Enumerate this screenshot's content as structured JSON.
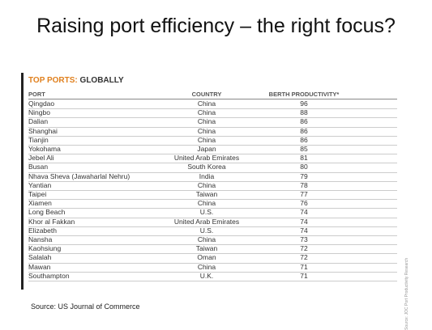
{
  "slide": {
    "title": "Raising port efficiency – the right focus?",
    "source": "Source: US Journal of Commerce"
  },
  "table": {
    "heading_highlight": "TOP PORTS:",
    "heading_rest": "GLOBALLY",
    "side_note": "Source: JOC Port Productivity Research",
    "columns": [
      "PORT",
      "COUNTRY",
      "BERTH PRODUCTIVITY*"
    ],
    "rows": [
      [
        "Qingdao",
        "China",
        96
      ],
      [
        "Ningbo",
        "China",
        88
      ],
      [
        "Dalian",
        "China",
        86
      ],
      [
        "Shanghai",
        "China",
        86
      ],
      [
        "Tianjin",
        "China",
        86
      ],
      [
        "Yokohama",
        "Japan",
        85
      ],
      [
        "Jebel Ali",
        "United Arab Emirates",
        81
      ],
      [
        "Busan",
        "South Korea",
        80
      ],
      [
        "Nhava Sheva (Jawaharlal Nehru)",
        "India",
        79
      ],
      [
        "Yantian",
        "China",
        78
      ],
      [
        "Taipei",
        "Taiwan",
        77
      ],
      [
        "Xiamen",
        "China",
        76
      ],
      [
        "Long Beach",
        "U.S.",
        74
      ],
      [
        "Khor al Fakkan",
        "United Arab Emirates",
        74
      ],
      [
        "Elizabeth",
        "U.S.",
        74
      ],
      [
        "Nansha",
        "China",
        73
      ],
      [
        "Kaohsiung",
        "Taiwan",
        72
      ],
      [
        "Salalah",
        "Oman",
        72
      ],
      [
        "Mawan",
        "China",
        71
      ],
      [
        "Southampton",
        "U.K.",
        71
      ]
    ]
  }
}
